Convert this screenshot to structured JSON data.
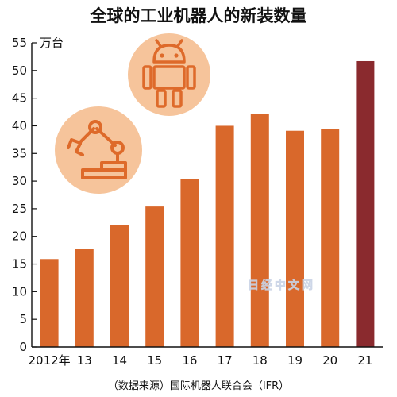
{
  "chart_data": {
    "type": "bar",
    "title": "全球的工业机器人的新装数量",
    "unit": "万台",
    "categories": [
      "2012年",
      "13",
      "14",
      "15",
      "16",
      "17",
      "18",
      "19",
      "20",
      "21"
    ],
    "values": [
      15.9,
      17.8,
      22.1,
      25.4,
      30.4,
      40.0,
      42.2,
      39.1,
      39.4,
      51.7
    ],
    "ylim": [
      0,
      55
    ],
    "yticks": [
      "0",
      "5",
      "10",
      "15",
      "20",
      "25",
      "30",
      "35",
      "40",
      "45",
      "50",
      "55"
    ],
    "grid": false,
    "source": "（数据来源）国际机器人联合会（IFR）"
  },
  "colors": {
    "bar": "#d9682b",
    "highlight_bar": "#8a2a2e",
    "icon_circle": "#f6c49b",
    "icon_stroke": "#de6a2a"
  },
  "icons": [
    "android-robot-icon",
    "robot-arm-icon"
  ],
  "watermark": "日经中文网"
}
